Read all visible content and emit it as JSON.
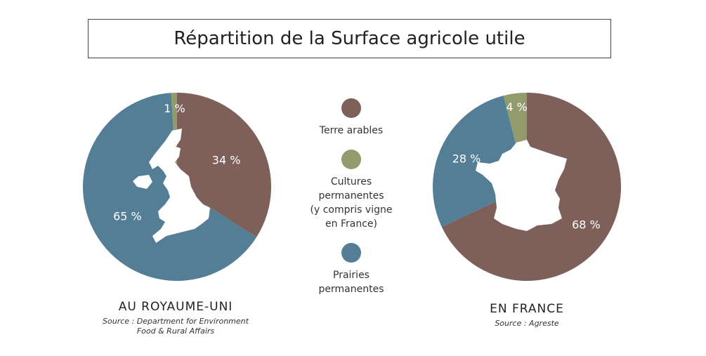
{
  "title": "Répartition de la Surface agricole utile",
  "colors": {
    "terre_arables": "#7e605b",
    "cultures_permanentes": "#929b6c",
    "prairies_permanentes": "#537e96"
  },
  "legend": [
    {
      "label": "Terre arables",
      "color": "#7e605b"
    },
    {
      "label": "Cultures permanentes (y compris vigne en France)",
      "color": "#929b6c"
    },
    {
      "label": "Prairies permanentes",
      "color": "#537e96"
    }
  ],
  "chart_data": [
    {
      "type": "pie",
      "title": "AU ROYAUME-UNI",
      "source": "Source : Department for Environment Food & Rural Affairs",
      "categories": [
        "Terre arables",
        "Prairies permanentes",
        "Cultures permanentes"
      ],
      "values": [
        34,
        65,
        1
      ],
      "labels": [
        "34 %",
        "65 %",
        "1 %"
      ],
      "colors": [
        "#7e605b",
        "#537e96",
        "#929b6c"
      ],
      "map_icon": "uk-map-silhouette"
    },
    {
      "type": "pie",
      "title": "EN FRANCE",
      "source": "Source : Agreste",
      "categories": [
        "Terre arables",
        "Prairies permanentes",
        "Cultures permanentes"
      ],
      "values": [
        68,
        28,
        4
      ],
      "labels": [
        "68 %",
        "28 %",
        "4 %"
      ],
      "colors": [
        "#7e605b",
        "#537e96",
        "#929b6c"
      ],
      "map_icon": "france-map-silhouette"
    }
  ],
  "captions": {
    "uk": {
      "title": "AU ROYAUME-UNI",
      "source_line1": "Source : Department for Environment",
      "source_line2": "Food & Rural Affairs"
    },
    "fr": {
      "title": "EN FRANCE",
      "source_line1": "Source : Agreste"
    }
  },
  "legend_text": {
    "item1": "Terre arables",
    "item2_line1": "Cultures",
    "item2_line2": "permanentes",
    "item2_line3": "(y compris vigne",
    "item2_line4": "en France)",
    "item3_line1": "Prairies",
    "item3_line2": "permanentes"
  }
}
